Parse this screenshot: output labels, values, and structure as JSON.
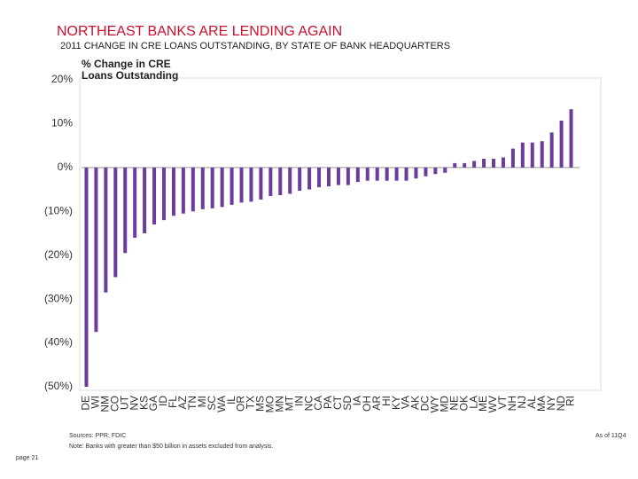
{
  "chart_data": {
    "type": "bar",
    "title": "NORTHEAST BANKS ARE LENDING AGAIN",
    "subtitle": "2011 CHANGE IN CRE LOANS OUTSTANDING, BY STATE OF BANK HEADQUARTERS",
    "y_label": "% Change in CRE Loans Outstanding",
    "categories": [
      "DE",
      "WI",
      "NM",
      "CO",
      "UT",
      "NV",
      "KS",
      "GA",
      "ID",
      "FL",
      "AZ",
      "TN",
      "MI",
      "SC",
      "WA",
      "IL",
      "OR",
      "TX",
      "MS",
      "MO",
      "MN",
      "MT",
      "IN",
      "NC",
      "CA",
      "PA",
      "CT",
      "SD",
      "IA",
      "OH",
      "AR",
      "HI",
      "KY",
      "VA",
      "AK",
      "DC",
      "WY",
      "MD",
      "NE",
      "OK",
      "LA",
      "ME",
      "WV",
      "VT",
      "NH",
      "NJ",
      "AL",
      "MA",
      "NY",
      "ND",
      "RI"
    ],
    "values": [
      -50,
      -37.5,
      -28.5,
      -25,
      -19.5,
      -16,
      -15,
      -13,
      -12,
      -11,
      -10.5,
      -10,
      -9.5,
      -9.3,
      -9,
      -8.5,
      -8,
      -7.8,
      -7.3,
      -6.5,
      -6.3,
      -6,
      -5.3,
      -5,
      -4.5,
      -4.3,
      -4,
      -4,
      -3.3,
      -3,
      -3,
      -3,
      -3,
      -3,
      -2.5,
      -2,
      -1.5,
      -1.2,
      1,
      1,
      1.5,
      2,
      2,
      2.3,
      4.3,
      5.7,
      5.7,
      6,
      8,
      10.7,
      13.3
    ],
    "color": "#6b3b9e",
    "ylim": [
      -50,
      20
    ],
    "yticks": [
      {
        "value": 20,
        "label": "20%"
      },
      {
        "value": 10,
        "label": "10%"
      },
      {
        "value": 0,
        "label": "0%"
      },
      {
        "value": -10,
        "label": "(10%)"
      },
      {
        "value": -20,
        "label": "(20%)"
      },
      {
        "value": -30,
        "label": "(30%)"
      },
      {
        "value": -40,
        "label": "(40%)"
      },
      {
        "value": -50,
        "label": "(50%)"
      }
    ],
    "grid": false,
    "sources": "Sources: PPR; FDIC",
    "note": "Note: Banks with greater than $50 billion in assets excluded from analysis.",
    "as_of": "As of 11Q4",
    "page": "page 21"
  }
}
